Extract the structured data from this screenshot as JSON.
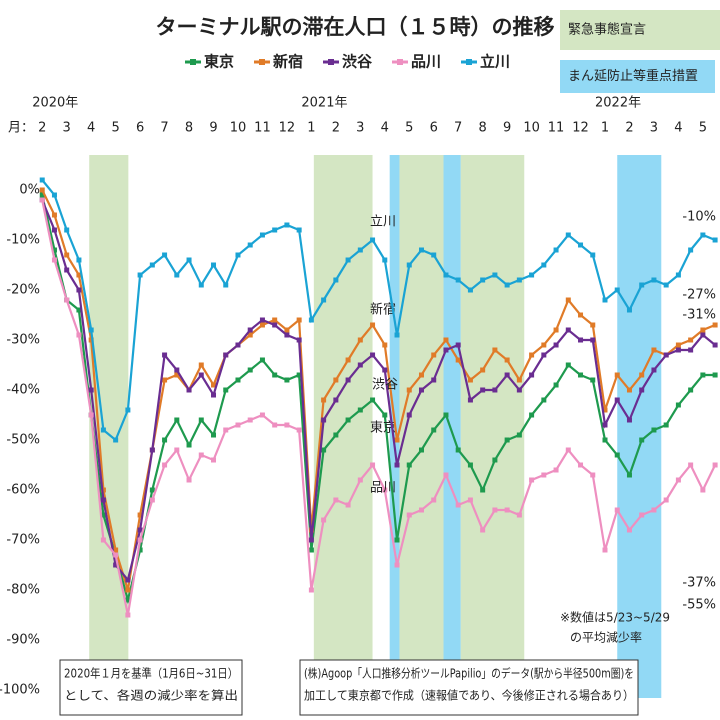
{
  "chart_data": {
    "type": "line",
    "title": "ターミナル駅の滞在人口（１５時）の推移",
    "month_prefix": "月：",
    "years": [
      {
        "value": 0,
        "label": "2020年"
      },
      {
        "value": 11,
        "label": "2021年"
      },
      {
        "value": 23,
        "label": "2022年"
      }
    ],
    "xlim": [
      -0.5,
      27.7
    ],
    "xticks": [
      {
        "value": 0,
        "label": "2"
      },
      {
        "value": 1,
        "label": "3"
      },
      {
        "value": 2,
        "label": "4"
      },
      {
        "value": 3,
        "label": "5"
      },
      {
        "value": 4,
        "label": "6"
      },
      {
        "value": 5,
        "label": "7"
      },
      {
        "value": 6,
        "label": "8"
      },
      {
        "value": 7,
        "label": "9"
      },
      {
        "value": 8,
        "label": "10"
      },
      {
        "value": 9,
        "label": "11"
      },
      {
        "value": 10,
        "label": "12"
      },
      {
        "value": 11,
        "label": "1"
      },
      {
        "value": 12,
        "label": "2"
      },
      {
        "value": 13,
        "label": "3"
      },
      {
        "value": 14,
        "label": "4"
      },
      {
        "value": 15,
        "label": "5"
      },
      {
        "value": 16,
        "label": "6"
      },
      {
        "value": 17,
        "label": "7"
      },
      {
        "value": 18,
        "label": "8"
      },
      {
        "value": 19,
        "label": "9"
      },
      {
        "value": 20,
        "label": "10"
      },
      {
        "value": 21,
        "label": "11"
      },
      {
        "value": 22,
        "label": "12"
      },
      {
        "value": 23,
        "label": "1"
      },
      {
        "value": 24,
        "label": "2"
      },
      {
        "value": 25,
        "label": "3"
      },
      {
        "value": 26,
        "label": "4"
      },
      {
        "value": 27,
        "label": "5"
      }
    ],
    "ylim": [
      3,
      -103
    ],
    "yticks": [
      {
        "value": 0,
        "label": "0%"
      },
      {
        "value": -10,
        "label": "-10%"
      },
      {
        "value": -20,
        "label": "-20%"
      },
      {
        "value": -30,
        "label": "-30%"
      },
      {
        "value": -40,
        "label": "-40%"
      },
      {
        "value": -50,
        "label": "-50%"
      },
      {
        "value": -60,
        "label": "-60%"
      },
      {
        "value": -70,
        "label": "-70%"
      },
      {
        "value": -80,
        "label": "-80%"
      },
      {
        "value": -90,
        "label": "-90%"
      },
      {
        "value": -100,
        "label": "-100%"
      }
    ],
    "shaded_periods": [
      {
        "name": "緊急事態宣言",
        "color": "#d4e6c3",
        "ranges": [
          [
            1.92,
            3.52
          ],
          [
            11.1,
            13.5
          ],
          [
            14.6,
            16.4
          ],
          [
            17.1,
            19.7
          ]
        ]
      },
      {
        "name": "まん延防止等重点措置",
        "color": "#92d9f5",
        "ranges": [
          [
            14.2,
            14.6
          ],
          [
            16.4,
            17.1
          ],
          [
            23.5,
            25.3
          ]
        ]
      }
    ],
    "x": [
      0,
      0.5,
      1,
      1.5,
      2,
      2.5,
      3,
      3.5,
      4,
      4.5,
      5,
      5.5,
      6,
      6.5,
      7,
      7.5,
      8,
      8.5,
      9,
      9.5,
      10,
      10.5,
      11,
      11.5,
      12,
      12.5,
      13,
      13.5,
      14,
      14.5,
      15,
      15.5,
      16,
      16.5,
      17,
      17.5,
      18,
      18.5,
      19,
      19.5,
      20,
      20.5,
      21,
      21.5,
      22,
      22.5,
      23,
      23.5,
      24,
      24.5,
      25,
      25.5,
      26,
      26.5,
      27,
      27.5
    ],
    "series": [
      {
        "name": "東京",
        "color": "#1e9a4e",
        "end_label": "-37%",
        "values": [
          -1,
          -12,
          -22,
          -24,
          -45,
          -65,
          -73,
          -82,
          -72,
          -60,
          -50,
          -46,
          -51,
          -46,
          -49,
          -40,
          -38,
          -36,
          -34,
          -37,
          -38,
          -37,
          -72,
          -52,
          -49,
          -46,
          -44,
          -42,
          -45,
          -70,
          -55,
          -52,
          -48,
          -45,
          -52,
          -55,
          -60,
          -54,
          -50,
          -49,
          -45,
          -42,
          -39,
          -35,
          -37,
          -38,
          -50,
          -53,
          -57,
          -50,
          -48,
          -47,
          -43,
          -40,
          -37,
          -37
        ]
      },
      {
        "name": "新宿",
        "color": "#e07b28",
        "end_label": "-27%",
        "values": [
          0,
          -5,
          -13,
          -17,
          -30,
          -60,
          -72,
          -80,
          -65,
          -52,
          -38,
          -37,
          -40,
          -35,
          -39,
          -33,
          -31,
          -29,
          -27,
          -26,
          -28,
          -26,
          -68,
          -42,
          -38,
          -34,
          -30,
          -27,
          -31,
          -50,
          -40,
          -37,
          -33,
          -30,
          -34,
          -38,
          -36,
          -32,
          -34,
          -38,
          -33,
          -31,
          -28,
          -22,
          -25,
          -27,
          -44,
          -37,
          -40,
          -37,
          -32,
          -33,
          -31,
          -30,
          -28,
          -27
        ]
      },
      {
        "name": "渋谷",
        "color": "#6a2d91",
        "end_label": "-31%",
        "values": [
          -2,
          -8,
          -16,
          -20,
          -40,
          -62,
          -75,
          -78,
          -68,
          -52,
          -33,
          -36,
          -40,
          -37,
          -41,
          -33,
          -31,
          -28,
          -26,
          -27,
          -29,
          -30,
          -70,
          -46,
          -42,
          -38,
          -35,
          -33,
          -36,
          -55,
          -45,
          -40,
          -38,
          -32,
          -31,
          -42,
          -40,
          -40,
          -37,
          -40,
          -37,
          -33,
          -31,
          -28,
          -30,
          -30,
          -47,
          -42,
          -46,
          -40,
          -36,
          -33,
          -32,
          -32,
          -29,
          -31
        ]
      },
      {
        "name": "品川",
        "color": "#ee8fc0",
        "end_label": "-55%",
        "values": [
          -2,
          -14,
          -22,
          -29,
          -45,
          -70,
          -73,
          -85,
          -70,
          -62,
          -55,
          -52,
          -58,
          -53,
          -54,
          -48,
          -47,
          -46,
          -45,
          -47,
          -47,
          -48,
          -80,
          -66,
          -62,
          -63,
          -58,
          -55,
          -60,
          -75,
          -65,
          -64,
          -62,
          -57,
          -63,
          -62,
          -68,
          -64,
          -64,
          -65,
          -58,
          -57,
          -56,
          -52,
          -55,
          -57,
          -72,
          -64,
          -68,
          -65,
          -64,
          -62,
          -58,
          -55,
          -60,
          -55
        ]
      },
      {
        "name": "立川",
        "color": "#1aa3d4",
        "end_label": "-10%",
        "values": [
          2,
          -1,
          -8,
          -14,
          -28,
          -48,
          -50,
          -44,
          -17,
          -15,
          -13,
          -17,
          -14,
          -19,
          -15,
          -19,
          -13,
          -11,
          -9,
          -8,
          -7,
          -8,
          -26,
          -22,
          -18,
          -14,
          -12,
          -10,
          -14,
          -29,
          -15,
          -12,
          -13,
          -17,
          -18,
          -20,
          -18,
          -17,
          -19,
          -18,
          -17,
          -15,
          -12,
          -9,
          -11,
          -13,
          -22,
          -20,
          -24,
          -19,
          -18,
          -19,
          -17,
          -12,
          -9,
          -10
        ]
      }
    ],
    "notes": [
      "※数値は5/23~5/29",
      "の平均減少率"
    ],
    "box_notes": [
      [
        "2020年１月を基準（1月6日~31日）",
        "として、各週の減少率を算出"
      ],
      [
        "(株)Agoop「人口推移分析ツールPapilio」のデータ(駅から半径500m圏)を",
        "加工して東京都で作成（速報値であり、今後修正される場合あり）"
      ]
    ]
  }
}
